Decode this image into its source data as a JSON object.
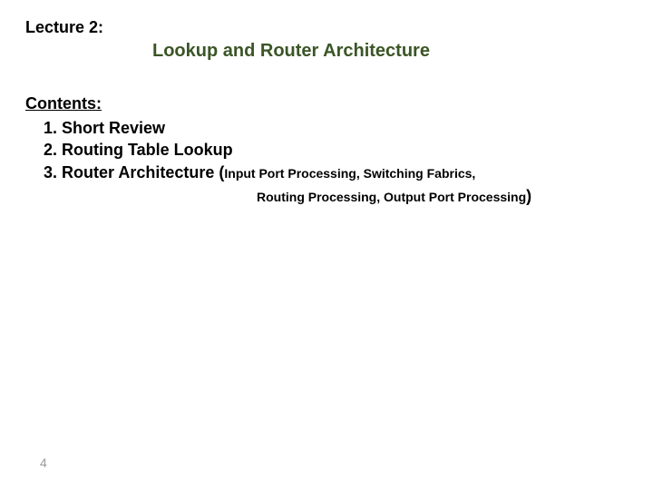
{
  "lecture": {
    "label": "Lecture 2:",
    "title": "Lookup and Router Architecture"
  },
  "contents": {
    "heading": "Contents:",
    "items": {
      "item1": "1. Short Review",
      "item2": "2. Routing Table Lookup",
      "item3_main": "3. Router Architecture (",
      "item3_sub1": "Input Port Processing, Switching Fabrics,",
      "item3_sub2": "Routing Processing, Output Port Processing",
      "item3_close": ")"
    }
  },
  "page_number": "4",
  "colors": {
    "title_color": "#3b5526",
    "text_color": "#000000",
    "page_num_color": "#9a9a9a",
    "background": "#ffffff"
  },
  "fonts": {
    "main_size": 18,
    "title_size": 20,
    "sub_size": 14,
    "page_num_size": 14,
    "weight": "bold"
  }
}
